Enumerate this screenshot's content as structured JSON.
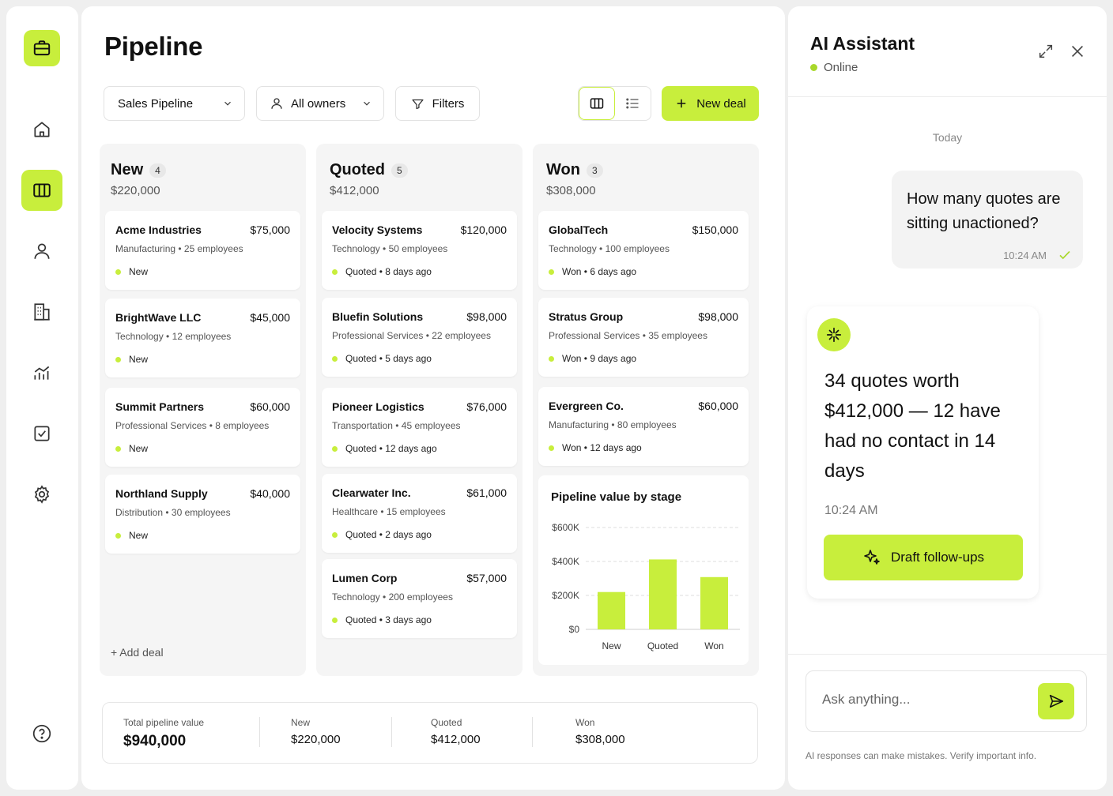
{
  "page": {
    "title": "Pipeline"
  },
  "toolbar": {
    "pipeline_select": "Sales Pipeline",
    "owners_select": "All owners",
    "filters_label": "Filters",
    "new_deal_label": "New deal"
  },
  "columns": [
    {
      "title": "New",
      "count": "4",
      "total": "$220,000",
      "cards": [
        {
          "name": "Acme Industries",
          "amount": "$75,000",
          "meta": "Manufacturing • 25 employees",
          "status": "New"
        },
        {
          "name": "BrightWave LLC",
          "amount": "$45,000",
          "meta": "Technology • 12 employees",
          "status": "New"
        },
        {
          "name": "Summit Partners",
          "amount": "$60,000",
          "meta": "Professional Services • 8 employees",
          "status": "New"
        },
        {
          "name": "Northland Supply",
          "amount": "$40,000",
          "meta": "Distribution • 30 employees",
          "status": "New"
        }
      ],
      "add_label": "+ Add deal"
    },
    {
      "title": "Quoted",
      "count": "5",
      "total": "$412,000",
      "cards": [
        {
          "name": "Velocity Systems",
          "amount": "$120,000",
          "meta": "Technology • 50 employees",
          "status": "Quoted • 8 days ago"
        },
        {
          "name": "Bluefin Solutions",
          "amount": "$98,000",
          "meta": "Professional Services • 22 employees",
          "status": "Quoted • 5 days ago"
        },
        {
          "name": "Pioneer Logistics",
          "amount": "$76,000",
          "meta": "Transportation • 45 employees",
          "status": "Quoted • 12 days ago"
        },
        {
          "name": "Clearwater Inc.",
          "amount": "$61,000",
          "meta": "Healthcare • 15 employees",
          "status": "Quoted • 2 days ago"
        },
        {
          "name": "Lumen Corp",
          "amount": "$57,000",
          "meta": "Technology • 200 employees",
          "status": "Quoted • 3 days ago"
        }
      ]
    },
    {
      "title": "Won",
      "count": "3",
      "total": "$308,000",
      "cards": [
        {
          "name": "GlobalTech",
          "amount": "$150,000",
          "meta": "Technology • 100 employees",
          "status": "Won • 6 days ago"
        },
        {
          "name": "Stratus Group",
          "amount": "$98,000",
          "meta": "Professional Services • 35 employees",
          "status": "Won • 9 days ago"
        },
        {
          "name": "Evergreen Co.",
          "amount": "$60,000",
          "meta": "Manufacturing • 80 employees",
          "status": "Won • 12 days ago"
        }
      ]
    }
  ],
  "chart_data": {
    "type": "bar",
    "title": "Pipeline value by stage",
    "categories": [
      "New",
      "Quoted",
      "Won"
    ],
    "values": [
      220000,
      412000,
      308000
    ],
    "ylim": [
      0,
      600000
    ],
    "yticks": [
      "$0",
      "$200K",
      "$400K",
      "$600K"
    ],
    "ytick_values": [
      0,
      200000,
      400000,
      600000
    ],
    "grid": true,
    "bar_color": "#c8ee3c"
  },
  "summary": {
    "total_label": "Total pipeline value",
    "total_value": "$940,000",
    "new_label": "New",
    "new_value": "$220,000",
    "quoted_label": "Quoted",
    "quoted_value": "$412,000",
    "won_label": "Won",
    "won_value": "$308,000"
  },
  "assistant": {
    "title": "AI Assistant",
    "status": "Online",
    "date_divider": "Today",
    "user_message": "How many quotes are sitting unactioned?",
    "user_time": "10:24 AM",
    "ai_message": "34 quotes worth $412,000 — 12 have had no contact in 14 days",
    "ai_time": "10:24 AM",
    "action_label": "Draft follow-ups",
    "input_placeholder": "Ask anything...",
    "disclaimer": "AI responses can make mistakes. Verify important info."
  },
  "colors": {
    "accent": "#c8ee3c",
    "online": "#a8d82a"
  }
}
